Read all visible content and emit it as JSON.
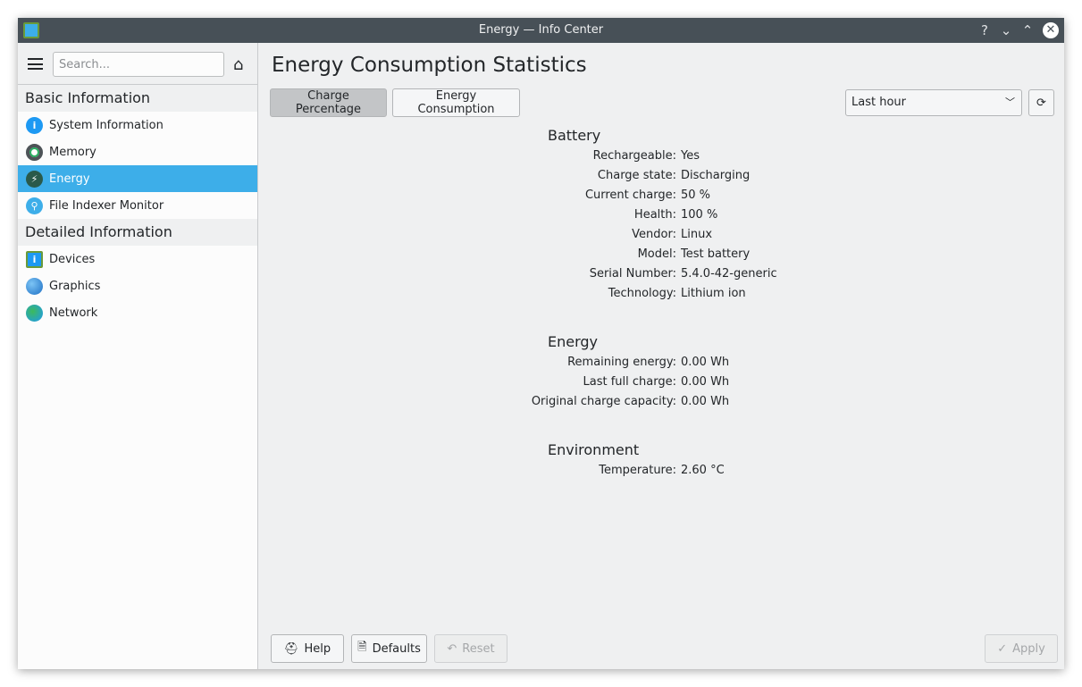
{
  "window": {
    "title": "Energy — Info Center",
    "controls": {
      "help": "?",
      "minimize": "⌄",
      "maximize": "⌃",
      "close": "✕"
    }
  },
  "sidebar": {
    "search_placeholder": "Search...",
    "categories": [
      {
        "label": "Basic Information",
        "items": [
          {
            "label": "System Information",
            "icon": "info-icon"
          },
          {
            "label": "Memory",
            "icon": "memory-icon"
          },
          {
            "label": "Energy",
            "icon": "energy-icon",
            "selected": true
          },
          {
            "label": "File Indexer Monitor",
            "icon": "file-indexer-icon"
          }
        ]
      },
      {
        "label": "Detailed Information",
        "items": [
          {
            "label": "Devices",
            "icon": "devices-icon"
          },
          {
            "label": "Graphics",
            "icon": "graphics-icon"
          },
          {
            "label": "Network",
            "icon": "network-icon"
          }
        ]
      }
    ]
  },
  "main": {
    "title": "Energy Consumption Statistics",
    "tabs": [
      {
        "label": "Charge Percentage",
        "active": true
      },
      {
        "label": "Energy Consumption"
      }
    ],
    "range": "Last hour",
    "sections": [
      {
        "title": "Battery",
        "rows": [
          [
            "Rechargeable:",
            "Yes"
          ],
          [
            "Charge state:",
            "Discharging"
          ],
          [
            "Current charge:",
            "50 %"
          ],
          [
            "Health:",
            "100 %"
          ],
          [
            "Vendor:",
            "Linux"
          ],
          [
            "Model:",
            "Test battery"
          ],
          [
            "Serial Number:",
            "5.4.0-42-generic"
          ],
          [
            "Technology:",
            "Lithium ion"
          ]
        ]
      },
      {
        "title": "Energy",
        "rows": [
          [
            "Remaining energy:",
            "0.00 Wh"
          ],
          [
            "Last full charge:",
            "0.00 Wh"
          ],
          [
            "Original charge capacity:",
            "0.00 Wh"
          ]
        ]
      },
      {
        "title": "Environment",
        "rows": [
          [
            "Temperature:",
            "2.60 °C"
          ]
        ]
      }
    ]
  },
  "footer": {
    "help": "Help",
    "defaults": "Defaults",
    "reset": "Reset",
    "apply": "Apply"
  },
  "colors": {
    "accent": "#3daee9",
    "titlebar": "#475057"
  }
}
